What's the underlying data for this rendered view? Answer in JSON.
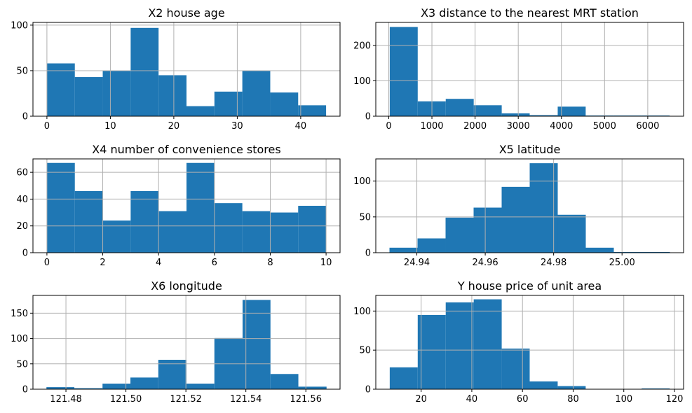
{
  "colors": {
    "bar": "#1f77b4",
    "grid": "#b0b0b0"
  },
  "chart_data": [
    {
      "type": "bar",
      "title": "X2 house age",
      "bin_edges": [
        0,
        4.4,
        8.8,
        13.2,
        17.6,
        22,
        26.4,
        30.8,
        35.2,
        39.6,
        44
      ],
      "values": [
        58,
        43,
        50,
        97,
        45,
        11,
        27,
        50,
        26,
        12
      ],
      "xlim": [
        -2.2,
        46.2
      ],
      "ylim": [
        0,
        103
      ],
      "xticks": [
        0,
        10,
        20,
        30,
        40
      ],
      "yticks": [
        0,
        50,
        100
      ],
      "xtick_labels": [
        "0",
        "10",
        "20",
        "30",
        "40"
      ],
      "ytick_labels": [
        "0",
        "50",
        "100"
      ],
      "grid": true
    },
    {
      "type": "bar",
      "title": "X3 distance to the nearest MRT station",
      "bin_edges": [
        23,
        671,
        1320,
        1968,
        2617,
        3265,
        3914,
        4562,
        5210,
        5859,
        6507
      ],
      "values": [
        252,
        42,
        49,
        31,
        8,
        3,
        27,
        2,
        2,
        2
      ],
      "xlim": [
        -300,
        6830
      ],
      "ylim": [
        0,
        265
      ],
      "xticks": [
        0,
        1000,
        2000,
        3000,
        4000,
        5000,
        6000
      ],
      "yticks": [
        0,
        100,
        200
      ],
      "xtick_labels": [
        "0",
        "1000",
        "2000",
        "3000",
        "4000",
        "5000",
        "6000"
      ],
      "ytick_labels": [
        "0",
        "100",
        "200"
      ],
      "grid": true
    },
    {
      "type": "bar",
      "title": "X4 number of convenience stores",
      "bin_edges": [
        0,
        1,
        2,
        3,
        4,
        5,
        6,
        7,
        8,
        9,
        10
      ],
      "values": [
        67,
        46,
        24,
        46,
        31,
        67,
        37,
        31,
        30,
        35
      ],
      "xlim": [
        -0.5,
        10.5
      ],
      "ylim": [
        0,
        70
      ],
      "xticks": [
        0,
        2,
        4,
        6,
        8,
        10
      ],
      "yticks": [
        0,
        20,
        40,
        60
      ],
      "xtick_labels": [
        "0",
        "2",
        "4",
        "6",
        "8",
        "10"
      ],
      "ytick_labels": [
        "0",
        "20",
        "40",
        "60"
      ],
      "grid": true
    },
    {
      "type": "bar",
      "title": "X5 latitude",
      "bin_edges": [
        24.932,
        24.9402,
        24.9484,
        24.9566,
        24.9648,
        24.973,
        24.9812,
        24.9894,
        24.9976,
        25.0058,
        25.014
      ],
      "values": [
        7,
        20,
        49,
        63,
        92,
        125,
        53,
        7,
        1,
        1
      ],
      "xlim": [
        24.928,
        25.018
      ],
      "ylim": [
        0,
        131
      ],
      "xticks": [
        24.94,
        24.96,
        24.98,
        25.0
      ],
      "yticks": [
        0,
        50,
        100
      ],
      "xtick_labels": [
        "24.94",
        "24.96",
        "24.98",
        "25.00"
      ],
      "ytick_labels": [
        "0",
        "50",
        "100"
      ],
      "grid": true
    },
    {
      "type": "bar",
      "title": "X6 longitude",
      "bin_edges": [
        121.4735,
        121.4828,
        121.4922,
        121.5015,
        121.5108,
        121.5202,
        121.5295,
        121.5389,
        121.5482,
        121.5575,
        121.5669
      ],
      "values": [
        4,
        2,
        11,
        23,
        58,
        11,
        101,
        176,
        30,
        5
      ],
      "xlim": [
        121.469,
        121.5714
      ],
      "ylim": [
        0,
        185
      ],
      "xticks": [
        121.48,
        121.5,
        121.52,
        121.54,
        121.56
      ],
      "yticks": [
        0,
        50,
        100,
        150
      ],
      "xtick_labels": [
        "121.48",
        "121.50",
        "121.52",
        "121.54",
        "121.56"
      ],
      "ytick_labels": [
        "0",
        "50",
        "100",
        "150"
      ],
      "grid": true
    },
    {
      "type": "bar",
      "title": "Y house price of unit area",
      "bin_edges": [
        7.6,
        18.65,
        29.7,
        40.75,
        51.8,
        62.85,
        73.9,
        84.95,
        96,
        107.05,
        118.1
      ],
      "values": [
        28,
        95,
        111,
        115,
        52,
        10,
        4,
        0,
        0,
        1
      ],
      "xlim": [
        2.1,
        123.6
      ],
      "ylim": [
        0,
        120
      ],
      "xticks": [
        20,
        40,
        60,
        80,
        100,
        120
      ],
      "yticks": [
        0,
        50,
        100
      ],
      "xtick_labels": [
        "20",
        "40",
        "60",
        "80",
        "100",
        "120"
      ],
      "ytick_labels": [
        "0",
        "50",
        "100"
      ],
      "grid": true
    }
  ]
}
